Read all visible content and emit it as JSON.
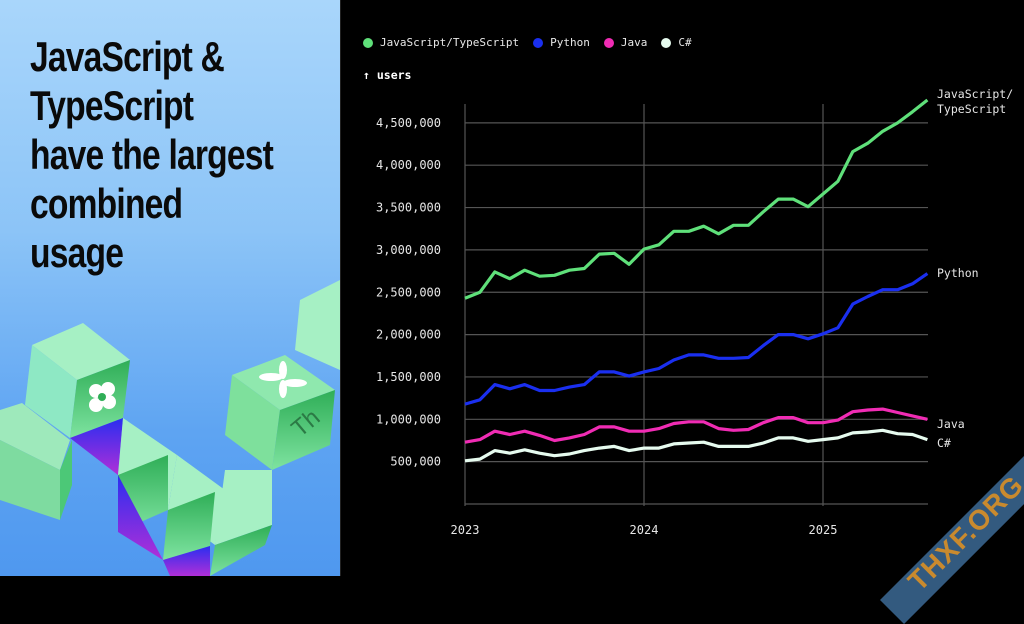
{
  "headline": "JavaScript &\nTypeScript\nhave the largest\ncombined\nusage",
  "decoration_text": "Th",
  "watermark": "THXF.ORG",
  "chart_data": {
    "type": "line",
    "ylabel": "↑ users",
    "xlabel": "",
    "ylim": [
      0,
      4800000
    ],
    "yticks": [
      500000,
      1000000,
      1500000,
      2000000,
      2500000,
      3000000,
      3500000,
      4000000,
      4500000
    ],
    "ytick_labels": [
      "500,000",
      "1,000,000",
      "1,500,000",
      "2,000,000",
      "2,500,000",
      "3,000,000",
      "3,500,000",
      "4,000,000",
      "4,500,000"
    ],
    "xticks": [
      "2023",
      "2024",
      "2025"
    ],
    "grid": true,
    "legend_position": "top",
    "x": [
      "2023-01",
      "2023-02",
      "2023-03",
      "2023-04",
      "2023-05",
      "2023-06",
      "2023-07",
      "2023-08",
      "2023-09",
      "2023-10",
      "2023-11",
      "2023-12",
      "2024-01",
      "2024-02",
      "2024-03",
      "2024-04",
      "2024-05",
      "2024-06",
      "2024-07",
      "2024-08",
      "2024-09",
      "2024-10",
      "2024-11",
      "2024-12",
      "2025-01",
      "2025-02",
      "2025-03",
      "2025-04",
      "2025-05",
      "2025-06",
      "2025-07",
      "2025-08"
    ],
    "series": [
      {
        "name": "JavaScript/TypeScript",
        "end_label": "JavaScript/\nTypeScript",
        "color": "#5fe07a",
        "values": [
          2430000,
          2500000,
          2740000,
          2660000,
          2760000,
          2690000,
          2700000,
          2760000,
          2780000,
          2950000,
          2960000,
          2830000,
          3010000,
          3060000,
          3220000,
          3220000,
          3280000,
          3190000,
          3290000,
          3290000,
          3450000,
          3600000,
          3600000,
          3510000,
          3660000,
          3810000,
          4160000,
          4260000,
          4400000,
          4500000,
          4630000,
          4770000
        ]
      },
      {
        "name": "Python",
        "end_label": "Python",
        "color": "#1a2ff0",
        "values": [
          1180000,
          1230000,
          1410000,
          1360000,
          1410000,
          1340000,
          1340000,
          1380000,
          1410000,
          1560000,
          1560000,
          1510000,
          1560000,
          1600000,
          1700000,
          1760000,
          1760000,
          1720000,
          1720000,
          1730000,
          1870000,
          2000000,
          2000000,
          1950000,
          2010000,
          2080000,
          2360000,
          2450000,
          2530000,
          2530000,
          2600000,
          2720000
        ]
      },
      {
        "name": "Java",
        "end_label": "Java",
        "color": "#f02cb4",
        "values": [
          730000,
          760000,
          860000,
          820000,
          860000,
          810000,
          750000,
          780000,
          820000,
          910000,
          910000,
          860000,
          860000,
          890000,
          950000,
          970000,
          970000,
          890000,
          870000,
          880000,
          960000,
          1020000,
          1020000,
          960000,
          960000,
          990000,
          1090000,
          1110000,
          1120000,
          1080000,
          1040000,
          1000000
        ]
      },
      {
        "name": "C#",
        "end_label": "C#",
        "color": "#e6fbef",
        "values": [
          510000,
          530000,
          630000,
          600000,
          640000,
          600000,
          570000,
          590000,
          630000,
          660000,
          680000,
          630000,
          660000,
          660000,
          710000,
          720000,
          730000,
          680000,
          680000,
          680000,
          720000,
          780000,
          780000,
          740000,
          760000,
          780000,
          840000,
          850000,
          870000,
          830000,
          820000,
          760000
        ]
      }
    ]
  }
}
